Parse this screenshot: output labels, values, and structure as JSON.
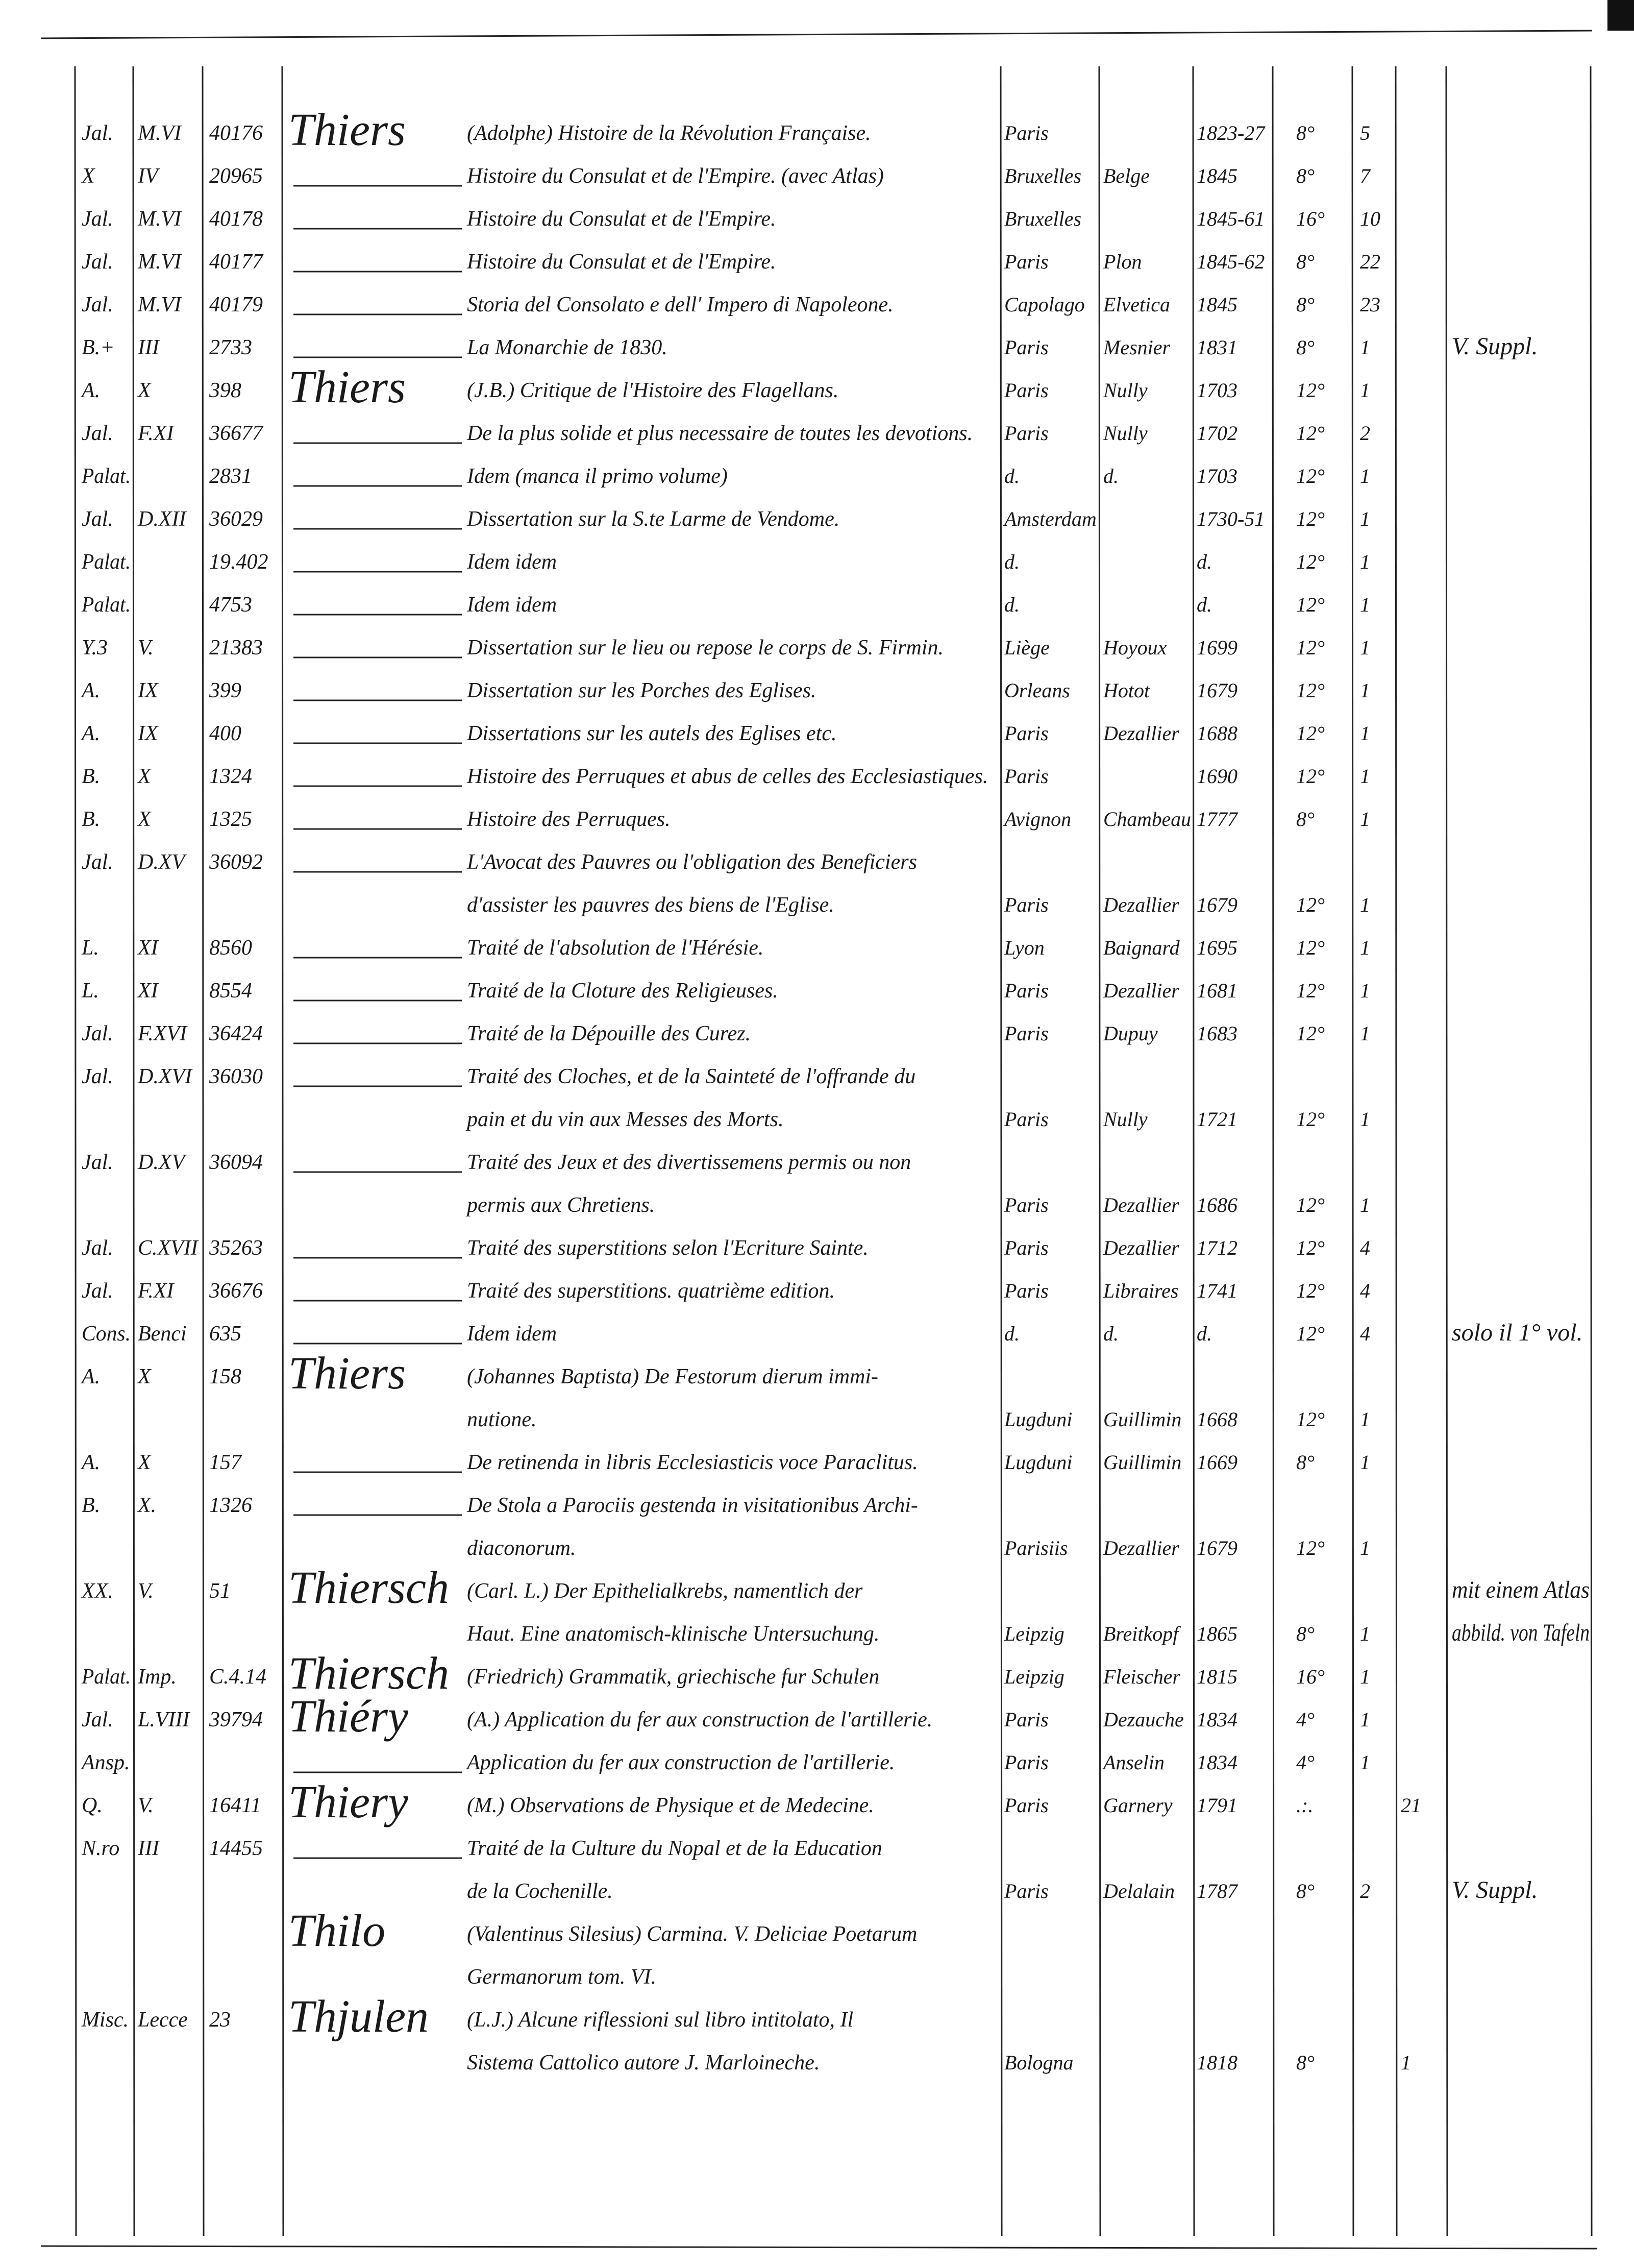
{
  "ledger": {
    "rows": [
      {
        "shelf": "Jal.",
        "section": "M.VI",
        "number": "40176",
        "author": "Thiers",
        "title": "(Adolphe) Histoire de la Révolution Française.",
        "place": "Paris",
        "year": "1823-27",
        "format": "8°",
        "volumes": "5"
      },
      {
        "shelf": "X",
        "section": "IV",
        "number": "20965",
        "title": "Histoire du Consulat et de l'Empire. (avec Atlas)",
        "place": "Bruxelles",
        "publisher": "Belge",
        "year": "1845",
        "format": "8°",
        "volumes": "7"
      },
      {
        "shelf": "Jal.",
        "section": "M.VI",
        "number": "40178",
        "title": "Histoire du Consulat et de l'Empire.",
        "place": "Bruxelles",
        "year": "1845-61",
        "format": "16°",
        "volumes": "10"
      },
      {
        "shelf": "Jal.",
        "section": "M.VI",
        "number": "40177",
        "title": "Histoire du Consulat et de l'Empire.",
        "place": "Paris",
        "publisher": "Plon",
        "year": "1845-62",
        "format": "8°",
        "volumes": "22"
      },
      {
        "shelf": "Jal.",
        "section": "M.VI",
        "number": "40179",
        "title": "Storia del Consolato e dell' Impero di Napoleone.",
        "place": "Capolago",
        "publisher": "Elvetica",
        "year": "1845",
        "format": "8°",
        "volumes": "23"
      },
      {
        "shelf": "B.+",
        "section": "III",
        "number": "2733",
        "title": "La Monarchie de 1830.",
        "place": "Paris",
        "publisher": "Mesnier",
        "year": "1831",
        "format": "8°",
        "volumes": "1",
        "note": "V. Suppl."
      },
      {
        "shelf": "A.",
        "section": "X",
        "number": "398",
        "author": "Thiers",
        "title": "(J.B.) Critique de l'Histoire des Flagellans.",
        "place": "Paris",
        "publisher": "Nully",
        "year": "1703",
        "format": "12°",
        "volumes": "1"
      },
      {
        "shelf": "Jal.",
        "section": "F.XI",
        "number": "36677",
        "title": "De la plus solide et plus necessaire de toutes les devotions.",
        "place": "Paris",
        "publisher": "Nully",
        "year": "1702",
        "format": "12°",
        "volumes": "2"
      },
      {
        "shelf": "Palat.",
        "number": "2831",
        "title": "Idem (manca il primo volume)",
        "place": "d.",
        "publisher": "d.",
        "year": "1703",
        "format": "12°",
        "volumes": "1"
      },
      {
        "shelf": "Jal.",
        "section": "D.XII",
        "number": "36029",
        "title": "Dissertation sur la S.te Larme de Vendome.",
        "place": "Amsterdam",
        "year": "1730-51",
        "format": "12°",
        "volumes": "1"
      },
      {
        "shelf": "Palat.",
        "number": "19.402",
        "title": "Idem idem",
        "place": "d.",
        "year": "d.",
        "format": "12°",
        "volumes": "1"
      },
      {
        "shelf": "Palat.",
        "number": "4753",
        "title": "Idem idem",
        "place": "d.",
        "year": "d.",
        "format": "12°",
        "volumes": "1"
      },
      {
        "shelf": "Y.3",
        "section": "V.",
        "number": "21383",
        "title": "Dissertation sur le lieu ou repose le corps de S. Firmin.",
        "place": "Liège",
        "publisher": "Hoyoux",
        "year": "1699",
        "format": "12°",
        "volumes": "1"
      },
      {
        "shelf": "A.",
        "section": "IX",
        "number": "399",
        "title": "Dissertation sur les Porches des Eglises.",
        "place": "Orleans",
        "publisher": "Hotot",
        "year": "1679",
        "format": "12°",
        "volumes": "1"
      },
      {
        "shelf": "A.",
        "section": "IX",
        "number": "400",
        "title": "Dissertations sur les autels des Eglises etc.",
        "place": "Paris",
        "publisher": "Dezallier",
        "year": "1688",
        "format": "12°",
        "volumes": "1"
      },
      {
        "shelf": "B.",
        "section": "X",
        "number": "1324",
        "title": "Histoire des Perruques et abus de celles des Ecclesiastiques.",
        "place": "Paris",
        "year": "1690",
        "format": "12°",
        "volumes": "1"
      },
      {
        "shelf": "B.",
        "section": "X",
        "number": "1325",
        "title": "Histoire des Perruques.",
        "place": "Avignon",
        "publisher": "Chambeau",
        "year": "1777",
        "format": "8°",
        "volumes": "1"
      },
      {
        "shelf": "Jal.",
        "section": "D.XV",
        "number": "36092",
        "title": "L'Avocat des Pauvres ou l'obligation des Beneficiers"
      },
      {
        "title": "d'assister les pauvres des biens de l'Eglise.",
        "place": "Paris",
        "publisher": "Dezallier",
        "year": "1679",
        "format": "12°",
        "volumes": "1"
      },
      {
        "shelf": "L.",
        "section": "XI",
        "number": "8560",
        "title": "Traité de l'absolution de l'Hérésie.",
        "place": "Lyon",
        "publisher": "Baignard",
        "year": "1695",
        "format": "12°",
        "volumes": "1"
      },
      {
        "shelf": "L.",
        "section": "XI",
        "number": "8554",
        "title": "Traité de la Cloture des Religieuses.",
        "place": "Paris",
        "publisher": "Dezallier",
        "year": "1681",
        "format": "12°",
        "volumes": "1"
      },
      {
        "shelf": "Jal.",
        "section": "F.XVI",
        "number": "36424",
        "title": "Traité de la Dépouille des Curez.",
        "place": "Paris",
        "publisher": "Dupuy",
        "year": "1683",
        "format": "12°",
        "volumes": "1"
      },
      {
        "shelf": "Jal.",
        "section": "D.XVI",
        "number": "36030",
        "title": "Traité des Cloches, et de la Sainteté de l'offrande du"
      },
      {
        "title": "pain et du vin aux Messes des Morts.",
        "place": "Paris",
        "publisher": "Nully",
        "year": "1721",
        "format": "12°",
        "volumes": "1"
      },
      {
        "shelf": "Jal.",
        "section": "D.XV",
        "number": "36094",
        "title": "Traité des Jeux et des divertissemens permis ou non"
      },
      {
        "title": "permis aux Chretiens.",
        "place": "Paris",
        "publisher": "Dezallier",
        "year": "1686",
        "format": "12°",
        "volumes": "1"
      },
      {
        "shelf": "Jal.",
        "section": "C.XVII",
        "number": "35263",
        "title": "Traité des superstitions selon l'Ecriture Sainte.",
        "place": "Paris",
        "publisher": "Dezallier",
        "year": "1712",
        "format": "12°",
        "volumes": "4"
      },
      {
        "shelf": "Jal.",
        "section": "F.XI",
        "number": "36676",
        "title": "Traité des superstitions. quatrième edition.",
        "place": "Paris",
        "publisher": "Libraires",
        "year": "1741",
        "format": "12°",
        "volumes": "4"
      },
      {
        "shelf": "Cons.",
        "section": "Benci",
        "number": "635",
        "title": "Idem idem",
        "place": "d.",
        "publisher": "d.",
        "year": "d.",
        "format": "12°",
        "volumes": "4",
        "note": "solo il 1° vol."
      },
      {
        "shelf": "A.",
        "section": "X",
        "number": "158",
        "author": "Thiers",
        "title": "(Johannes Baptista) De Festorum dierum immi-"
      },
      {
        "title": "nutione.",
        "place": "Lugduni",
        "publisher": "Guillimin",
        "year": "1668",
        "format": "12°",
        "volumes": "1"
      },
      {
        "shelf": "A.",
        "section": "X",
        "number": "157",
        "title": "De retinenda in libris Ecclesiasticis voce Paraclitus.",
        "place": "Lugduni",
        "publisher": "Guillimin",
        "year": "1669",
        "format": "8°",
        "volumes": "1"
      },
      {
        "shelf": "B.",
        "section": "X.",
        "number": "1326",
        "title": "De Stola a Parociis gestenda in visitationibus Archi-"
      },
      {
        "title": "diaconorum.",
        "place": "Parisiis",
        "publisher": "Dezallier",
        "year": "1679",
        "format": "12°",
        "volumes": "1"
      },
      {
        "shelf": "XX.",
        "section": "V.",
        "number": "51",
        "author": "Thiersch",
        "title": "(Carl. L.) Der Epithelialkrebs, namentlich der",
        "note": "mit einem Atlas"
      },
      {
        "title": "Haut. Eine anatomisch-klinische Untersuchung.",
        "place": "Leipzig",
        "publisher": "Breitkopf",
        "year": "1865",
        "format": "8°",
        "volumes": "1",
        "note": "abbild. von Tafeln"
      },
      {
        "shelf": "Palat.",
        "section": "Imp.",
        "number": "C.4.14",
        "author": "Thiersch",
        "title": "(Friedrich) Grammatik, griechische fur Schulen",
        "place": "Leipzig",
        "publisher": "Fleischer",
        "year": "1815",
        "format": "16°",
        "volumes": "1"
      },
      {
        "shelf": "Jal.",
        "section": "L.VIII",
        "number": "39794",
        "author": "Thiéry",
        "title": "(A.) Application du fer aux construction de l'artillerie.",
        "place": "Paris",
        "publisher": "Dezauche",
        "year": "1834",
        "format": "4°",
        "volumes": "1"
      },
      {
        "shelf": "Ansp.",
        "title": "Application du fer aux construction de l'artillerie.",
        "place": "Paris",
        "publisher": "Anselin",
        "year": "1834",
        "format": "4°",
        "volumes": "1"
      },
      {
        "shelf": "Q.",
        "section": "V.",
        "number": "16411",
        "author": "Thiery",
        "title": "(M.) Observations de Physique et de Medecine.",
        "place": "Paris",
        "publisher": "Garnery",
        "year": "1791",
        "format": ".:.",
        "extra": "21"
      },
      {
        "shelf": "N.ro",
        "section": "III",
        "number": "14455",
        "title": "Traité de la Culture du Nopal et de la Education"
      },
      {
        "title": "de la Cochenille.",
        "place": "Paris",
        "publisher": "Delalain",
        "year": "1787",
        "format": "8°",
        "volumes": "2",
        "note": "V. Suppl."
      },
      {
        "author": "Thilo",
        "title": "(Valentinus Silesius) Carmina. V. Deliciae Poetarum"
      },
      {
        "title": "Germanorum tom. VI."
      },
      {
        "shelf": "Misc.",
        "section": "Lecce",
        "number": "23",
        "author": "Thjulen",
        "title": "(L.J.) Alcune riflessioni sul libro intitolato, Il"
      },
      {
        "title": "Sistema Cattolico autore J. Marloineche.",
        "place": "Bologna",
        "year": "1818",
        "format": "8°",
        "extra": "1"
      }
    ]
  }
}
